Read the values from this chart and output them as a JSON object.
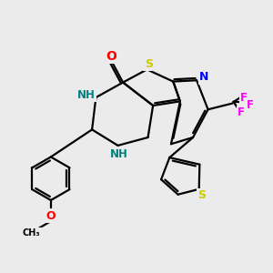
{
  "background_color": "#ebebeb",
  "bond_color": "#000000",
  "atom_colors": {
    "S": "#cccc00",
    "N": "#0000ff",
    "O": "#ff0000",
    "F": "#ff00ff",
    "NH": "#008080",
    "C": "#000000"
  },
  "title": "",
  "figsize": [
    3.0,
    3.0
  ],
  "dpi": 100
}
